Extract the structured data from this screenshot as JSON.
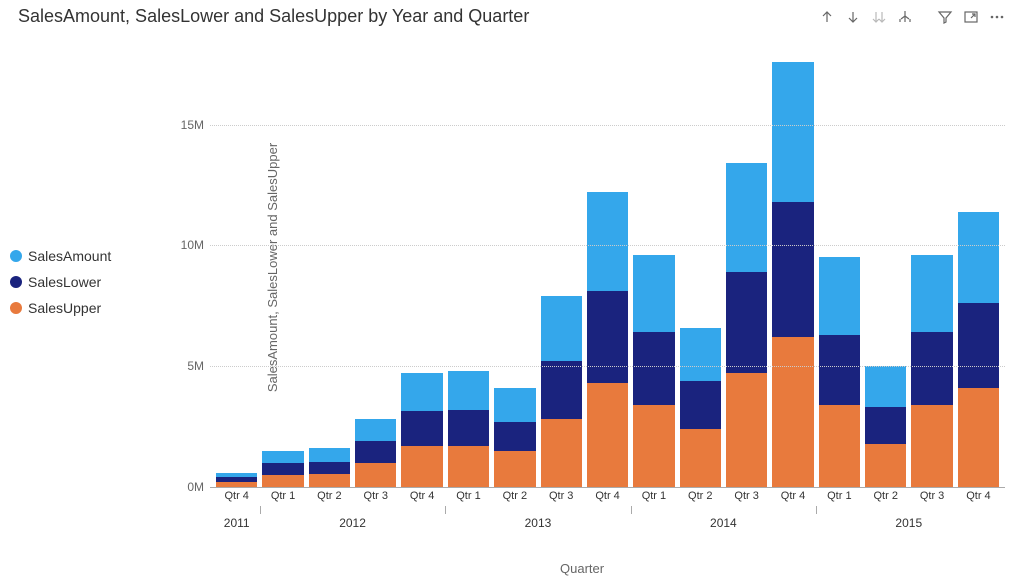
{
  "title": "SalesAmount, SalesLower and SalesUpper by Year and Quarter",
  "y_axis": {
    "label": "SalesAmount, SalesLower and SalesUpper",
    "min": 0,
    "max": 18000000,
    "ticks": [
      {
        "value": 0,
        "label": "0M"
      },
      {
        "value": 5000000,
        "label": "5M"
      },
      {
        "value": 10000000,
        "label": "10M"
      },
      {
        "value": 15000000,
        "label": "15M"
      }
    ]
  },
  "x_axis": {
    "label": "Quarter"
  },
  "legend": [
    {
      "key": "SalesAmount",
      "label": "SalesAmount",
      "color": "#34a7eb"
    },
    {
      "key": "SalesLower",
      "label": "SalesLower",
      "color": "#1a237e"
    },
    {
      "key": "SalesUpper",
      "label": "SalesUpper",
      "color": "#e87a3d"
    }
  ],
  "background_color": "#ffffff",
  "grid_color": "#cccccc",
  "bars": [
    {
      "year": "2011",
      "q": "Qtr 4",
      "SalesUpper": 200000,
      "SalesLower": 200000,
      "SalesAmount": 200000
    },
    {
      "year": "2012",
      "q": "Qtr 1",
      "SalesUpper": 500000,
      "SalesLower": 500000,
      "SalesAmount": 500000
    },
    {
      "year": "2012",
      "q": "Qtr 2",
      "SalesUpper": 550000,
      "SalesLower": 500000,
      "SalesAmount": 550000
    },
    {
      "year": "2012",
      "q": "Qtr 3",
      "SalesUpper": 1000000,
      "SalesLower": 900000,
      "SalesAmount": 900000
    },
    {
      "year": "2012",
      "q": "Qtr 4",
      "SalesUpper": 1700000,
      "SalesLower": 1450000,
      "SalesAmount": 1550000
    },
    {
      "year": "2013",
      "q": "Qtr 1",
      "SalesUpper": 1700000,
      "SalesLower": 1500000,
      "SalesAmount": 1600000
    },
    {
      "year": "2013",
      "q": "Qtr 2",
      "SalesUpper": 1500000,
      "SalesLower": 1200000,
      "SalesAmount": 1400000
    },
    {
      "year": "2013",
      "q": "Qtr 3",
      "SalesUpper": 2800000,
      "SalesLower": 2400000,
      "SalesAmount": 2700000
    },
    {
      "year": "2013",
      "q": "Qtr 4",
      "SalesUpper": 4300000,
      "SalesLower": 3800000,
      "SalesAmount": 4100000
    },
    {
      "year": "2014",
      "q": "Qtr 1",
      "SalesUpper": 3400000,
      "SalesLower": 3000000,
      "SalesAmount": 3200000
    },
    {
      "year": "2014",
      "q": "Qtr 2",
      "SalesUpper": 2400000,
      "SalesLower": 2000000,
      "SalesAmount": 2200000
    },
    {
      "year": "2014",
      "q": "Qtr 3",
      "SalesUpper": 4700000,
      "SalesLower": 4200000,
      "SalesAmount": 4500000
    },
    {
      "year": "2014",
      "q": "Qtr 4",
      "SalesUpper": 6200000,
      "SalesLower": 5600000,
      "SalesAmount": 5800000
    },
    {
      "year": "2015",
      "q": "Qtr 1",
      "SalesUpper": 3400000,
      "SalesLower": 2900000,
      "SalesAmount": 3200000
    },
    {
      "year": "2015",
      "q": "Qtr 2",
      "SalesUpper": 1800000,
      "SalesLower": 1500000,
      "SalesAmount": 1700000
    },
    {
      "year": "2015",
      "q": "Qtr 3",
      "SalesUpper": 3400000,
      "SalesLower": 3000000,
      "SalesAmount": 3200000
    },
    {
      "year": "2015",
      "q": "Qtr 4",
      "SalesUpper": 4100000,
      "SalesLower": 3500000,
      "SalesAmount": 3800000
    }
  ],
  "years": [
    "2011",
    "2012",
    "2013",
    "2014",
    "2015"
  ]
}
